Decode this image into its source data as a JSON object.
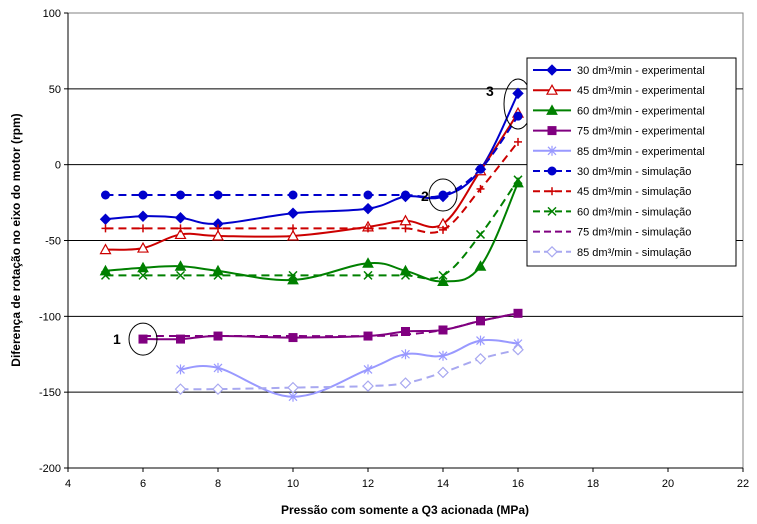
{
  "chart_data": {
    "type": "line",
    "xlabel": "Pressão com somente a Q3 acionada (MPa)",
    "ylabel": "Diferença de rotação no eixo do motor (rpm)",
    "xlim": [
      4,
      22
    ],
    "ylim": [
      -200,
      100
    ],
    "xticks": [
      4,
      6,
      8,
      10,
      12,
      14,
      16,
      18,
      20,
      22
    ],
    "yticks": [
      -200,
      -150,
      -100,
      -50,
      0,
      50,
      100
    ],
    "grid": "horizontal major gridlines",
    "legend_position": "top-right",
    "series": [
      {
        "name": "30 dm³/min - experimental",
        "color": "#0000CC",
        "dash": "solid",
        "marker": "diamond-filled",
        "x": [
          5,
          6,
          7,
          8,
          10,
          12,
          13,
          14,
          15,
          16
        ],
        "y": [
          -36,
          -34,
          -35,
          -39,
          -32,
          -29,
          -21,
          -21,
          -3,
          47
        ]
      },
      {
        "name": "45 dm³/min - experimental",
        "color": "#CC0000",
        "dash": "solid",
        "marker": "triangle-open",
        "x": [
          5,
          6,
          7,
          8,
          10,
          12,
          13,
          14,
          15,
          16
        ],
        "y": [
          -56,
          -55,
          -46,
          -47,
          -47,
          -41,
          -37,
          -39,
          -4,
          34
        ]
      },
      {
        "name": "60 dm³/min - experimental",
        "color": "#008000",
        "dash": "solid",
        "marker": "triangle-filled",
        "x": [
          5,
          6,
          7,
          8,
          10,
          12,
          13,
          14,
          15,
          16
        ],
        "y": [
          -70,
          -68,
          -67,
          -70,
          -76,
          -65,
          -70,
          -77,
          -67,
          -12
        ]
      },
      {
        "name": "75 dm³/min - experimental",
        "color": "#800080",
        "dash": "solid",
        "marker": "square-filled",
        "x": [
          6,
          7,
          8,
          10,
          12,
          13,
          14,
          15,
          16
        ],
        "y": [
          -115,
          -115,
          -113,
          -114,
          -113,
          -110,
          -109,
          -103,
          -98
        ]
      },
      {
        "name": "85 dm³/min - experimental",
        "color": "#9999FF",
        "dash": "solid",
        "marker": "star",
        "x": [
          7,
          8,
          10,
          12,
          13,
          14,
          15,
          16
        ],
        "y": [
          -135,
          -134,
          -153,
          -135,
          -125,
          -126,
          -116,
          -118
        ]
      },
      {
        "name": "30 dm³/min - simulação",
        "color": "#0000CC",
        "dash": "dashed",
        "marker": "circle-filled",
        "x": [
          5,
          6,
          7,
          8,
          10,
          12,
          13,
          14,
          15,
          16
        ],
        "y": [
          -20,
          -20,
          -20,
          -20,
          -20,
          -20,
          -20,
          -20,
          -3,
          32
        ]
      },
      {
        "name": "45 dm³/min - simulação",
        "color": "#CC0000",
        "dash": "dashed",
        "marker": "plus",
        "x": [
          5,
          6,
          7,
          8,
          10,
          12,
          13,
          14,
          15,
          16
        ],
        "y": [
          -42,
          -42,
          -42,
          -42,
          -42,
          -42,
          -42,
          -43,
          -16,
          15
        ]
      },
      {
        "name": "60 dm³/min - simulação",
        "color": "#008000",
        "dash": "dashed",
        "marker": "x",
        "x": [
          5,
          6,
          7,
          8,
          10,
          12,
          13,
          14,
          15,
          16
        ],
        "y": [
          -73,
          -73,
          -73,
          -73,
          -73,
          -73,
          -73,
          -73,
          -46,
          -10
        ]
      },
      {
        "name": "75 dm³/min - simulação",
        "color": "#800080",
        "dash": "dashed",
        "marker": "none",
        "x": [
          6,
          7,
          8,
          10,
          12,
          13,
          14,
          15,
          16
        ],
        "y": [
          -113,
          -113,
          -113,
          -113,
          -113,
          -112,
          -109,
          -103,
          -98
        ]
      },
      {
        "name": "85 dm³/min - simulação",
        "color": "#A8A8F0",
        "dash": "dashed",
        "marker": "diamond-open",
        "x": [
          7,
          8,
          10,
          12,
          13,
          14,
          15,
          16
        ],
        "y": [
          -148,
          -148,
          -147,
          -146,
          -144,
          -137,
          -128,
          -122
        ]
      }
    ],
    "annotations": [
      {
        "label": "1",
        "x": 6,
        "y": -115
      },
      {
        "label": "2",
        "x": 14,
        "y": -20
      },
      {
        "label": "3",
        "x": 16,
        "y": 40
      }
    ]
  }
}
